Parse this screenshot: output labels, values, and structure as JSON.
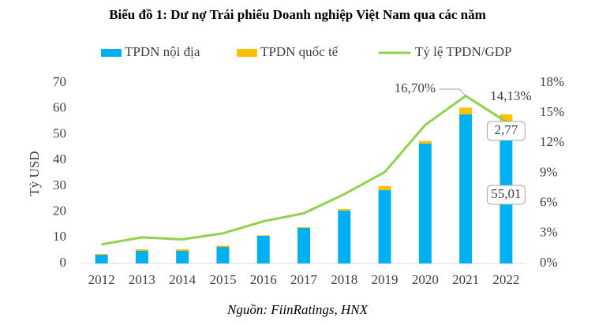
{
  "chart_data": {
    "type": "bar+line",
    "title": "Biểu đồ 1: Dư nợ Trái phiếu Doanh nghiệp Việt Nam qua các năm",
    "y_label": "Tỷ USD",
    "source": "Nguồn: FiinRatings, HNX",
    "categories": [
      "2012",
      "2013",
      "2014",
      "2015",
      "2016",
      "2017",
      "2018",
      "2019",
      "2020",
      "2021",
      "2022"
    ],
    "series": [
      {
        "name": "TPDN nội địa",
        "type": "bar",
        "color": "#00b0f0",
        "values": [
          3.4,
          4.9,
          4.9,
          6.4,
          10.7,
          13.8,
          20.5,
          28.4,
          46.5,
          57.8,
          55.01
        ],
        "value_labels": [
          null,
          null,
          null,
          null,
          null,
          null,
          null,
          null,
          null,
          null,
          "55,01"
        ]
      },
      {
        "name": "TPDN quốc tế",
        "type": "bar",
        "color": "#ffc000",
        "values": [
          0.3,
          0.6,
          0.6,
          0.5,
          0.2,
          0.3,
          0.6,
          1.6,
          1.0,
          2.6,
          2.77
        ],
        "value_labels": [
          null,
          null,
          null,
          null,
          null,
          null,
          null,
          null,
          null,
          null,
          "2,77"
        ]
      },
      {
        "name": "Tỷ lệ TPDN/GDP",
        "type": "line",
        "axis": "y2",
        "color": "#92d050",
        "values": [
          1.9,
          2.6,
          2.4,
          3.0,
          4.2,
          5.0,
          6.9,
          9.1,
          13.8,
          16.7,
          14.13
        ],
        "value_labels": [
          null,
          null,
          null,
          null,
          null,
          null,
          null,
          null,
          null,
          "16,70%",
          "14,13%"
        ]
      }
    ],
    "ylim": [
      0,
      70
    ],
    "yticks": [
      0,
      10,
      20,
      30,
      40,
      50,
      60,
      70
    ],
    "y2lim": [
      0,
      18
    ],
    "y2ticks": [
      {
        "value": 0,
        "label": "0%"
      },
      {
        "value": 3,
        "label": "3%"
      },
      {
        "value": 6,
        "label": "6%"
      },
      {
        "value": 9,
        "label": "9%"
      },
      {
        "value": 12,
        "label": "12%"
      },
      {
        "value": 15,
        "label": "15%"
      },
      {
        "value": 18,
        "label": "18%"
      }
    ],
    "legend": "top",
    "grid": false
  }
}
